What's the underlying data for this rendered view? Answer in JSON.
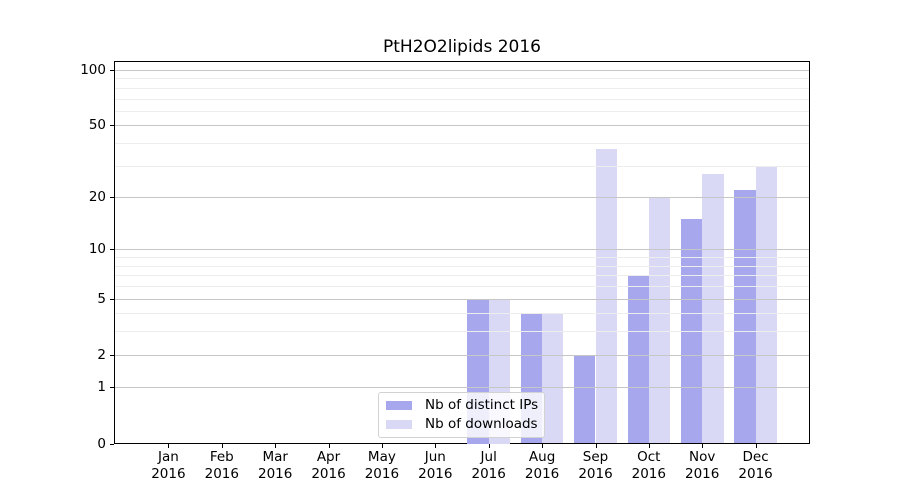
{
  "figure": {
    "background": "#ffffff",
    "text_color": "#000000"
  },
  "chart_data": {
    "type": "bar",
    "title": "PtH2O2lipids 2016",
    "categories": [
      "Jan",
      "Feb",
      "Mar",
      "Apr",
      "May",
      "Jun",
      "Jul",
      "Aug",
      "Sep",
      "Oct",
      "Nov",
      "Dec"
    ],
    "x_year_label": "2016",
    "series": [
      {
        "name": "Nb of distinct IPs",
        "color": "#a7a7ee",
        "values": [
          0,
          0,
          0,
          0,
          0,
          0,
          5,
          4,
          2,
          7,
          15,
          22
        ]
      },
      {
        "name": "Nb of downloads",
        "color": "#d9d9f6",
        "values": [
          0,
          0,
          0,
          0,
          0,
          0,
          5,
          4,
          37,
          20,
          27,
          30
        ]
      }
    ],
    "xlabel": "",
    "ylabel": "",
    "ylim": [
      0,
      112
    ],
    "yscale": "log1p",
    "y_major_ticks": [
      0,
      1,
      2,
      5,
      10,
      20,
      50,
      100
    ],
    "y_minor_ticks": [
      3,
      4,
      6,
      7,
      8,
      9,
      30,
      40,
      60,
      70,
      80,
      90
    ],
    "grid": true,
    "grid_major_color": "#c6c6c6",
    "grid_minor_color": "#ededed",
    "legend_position": "lower center"
  }
}
